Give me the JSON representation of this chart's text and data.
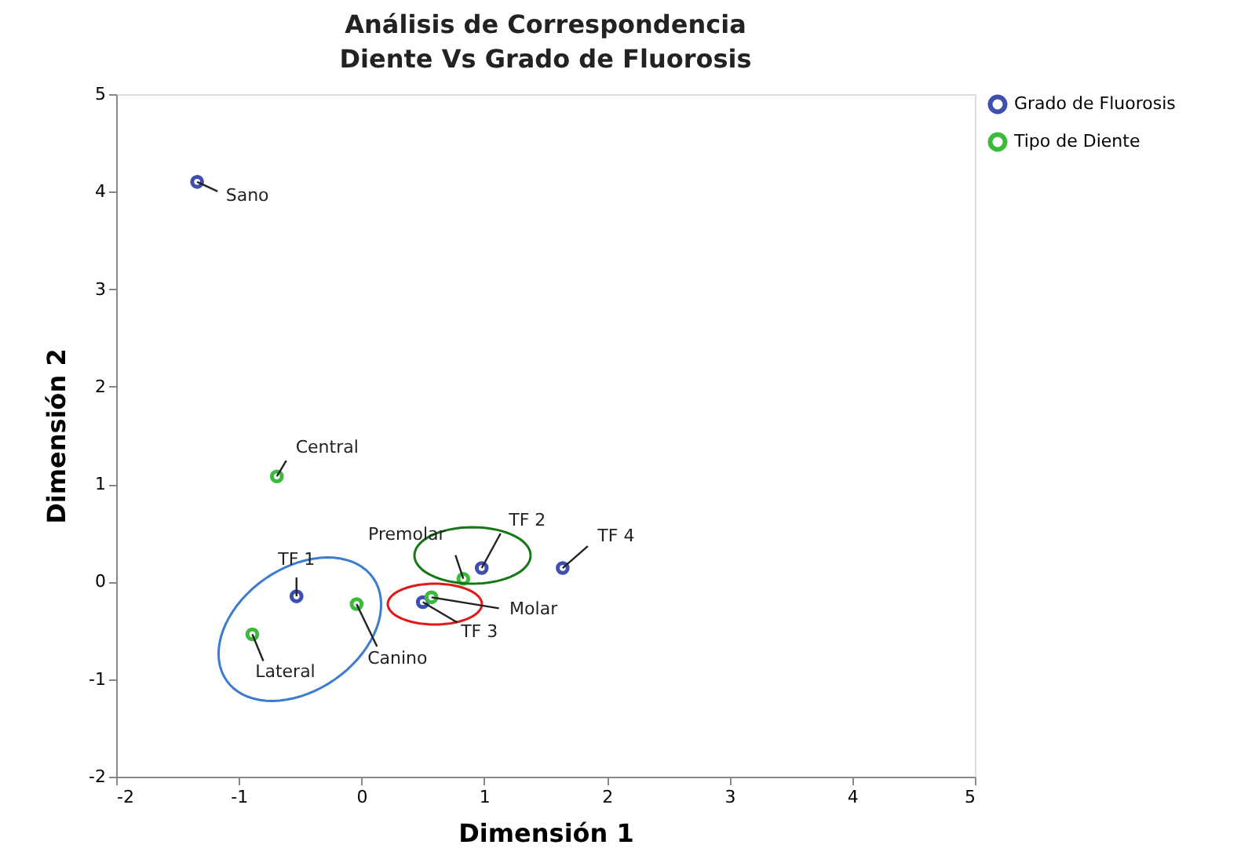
{
  "chart_data": {
    "type": "scatter",
    "title": "Análisis de Correspondencia",
    "subtitle": "Diente Vs Grado de Fluorosis",
    "xlabel": "Dimensión 1",
    "ylabel": "Dimensión 2",
    "xlim": [
      -2,
      5
    ],
    "xticks": [
      -2,
      -1,
      0,
      1,
      2,
      3,
      4,
      5
    ],
    "ylim": [
      -2,
      5
    ],
    "yticks": [
      -2,
      -1,
      0,
      1,
      2,
      3,
      4,
      5
    ],
    "grid": false,
    "legend": "top right",
    "marker": "circle",
    "series": [
      {
        "name": "Grado de Fluorosis",
        "color": "#3f4fb0",
        "x": [
          -0.53,
          0.98,
          0.5,
          1.64,
          -1.34
        ],
        "values": [
          -0.15,
          0.14,
          -0.21,
          0.14,
          4.1
        ]
      },
      {
        "name": "Tipo de Diente",
        "color": "#3cba3c",
        "x": [
          -0.69,
          -0.89,
          -0.04,
          0.83,
          0.57
        ],
        "values": [
          1.08,
          -0.54,
          -0.23,
          0.03,
          -0.16
        ]
      }
    ],
    "annotations": [
      {
        "text": "TF 1",
        "x": -0.53,
        "y": -0.15
      },
      {
        "text": "TF 2",
        "x": 0.98,
        "y": 0.14
      },
      {
        "text": "TF 3",
        "x": 0.5,
        "y": -0.21
      },
      {
        "text": "TF 4",
        "x": 1.64,
        "y": 0.14
      },
      {
        "text": "Sano",
        "x": -1.34,
        "y": 4.1
      },
      {
        "text": "Central",
        "x": -0.69,
        "y": 1.08
      },
      {
        "text": "Lateral",
        "x": -0.89,
        "y": -0.54
      },
      {
        "text": "Canino",
        "x": -0.04,
        "y": -0.23
      },
      {
        "text": "Premolar",
        "x": 0.83,
        "y": 0.03
      },
      {
        "text": "Molar",
        "x": 0.57,
        "y": -0.16
      }
    ]
  }
}
